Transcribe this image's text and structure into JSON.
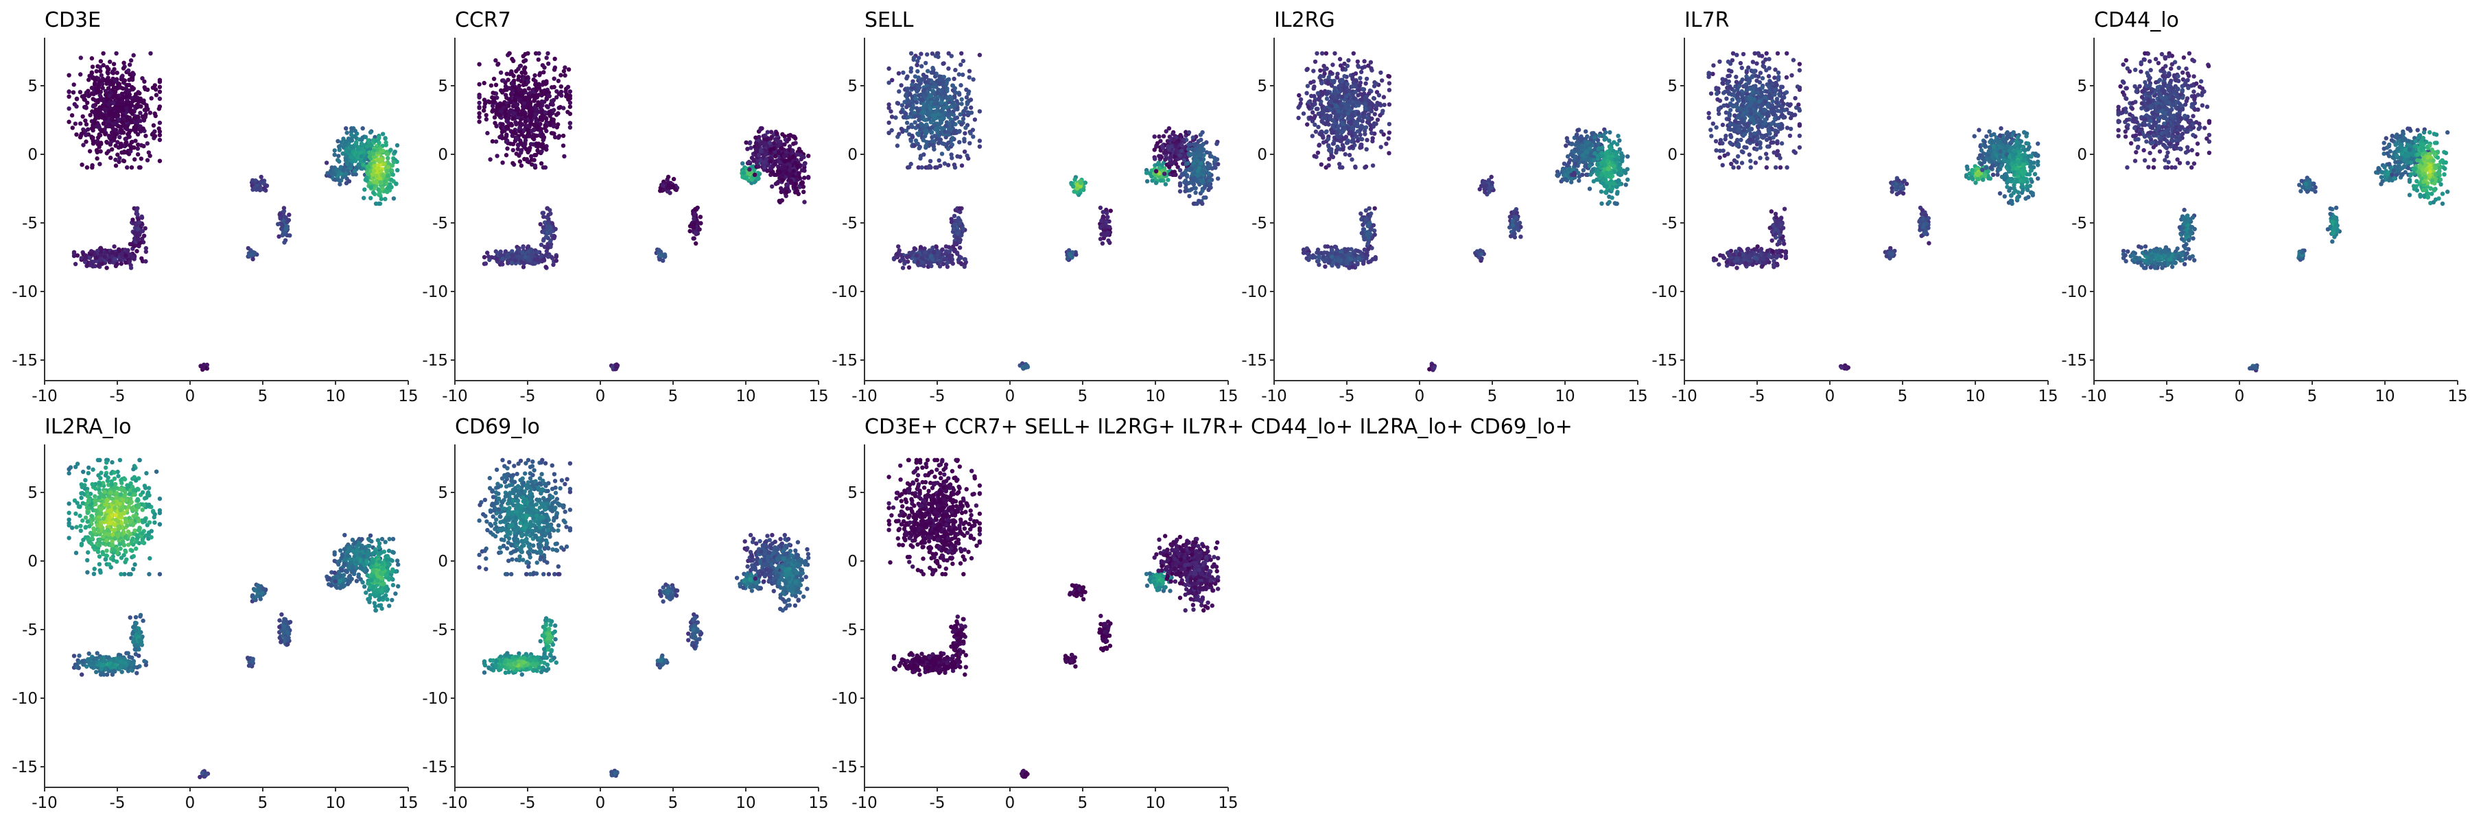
{
  "chart_data": [
    {
      "type": "scatter",
      "title": "CD3E",
      "x_ticks": [
        "-10",
        "-5",
        "0",
        "5",
        "10",
        "15"
      ],
      "y_ticks": [
        "5",
        "0",
        "-5",
        "-10",
        "-15"
      ],
      "xlim": [
        -10,
        15
      ],
      "ylim": [
        -16.5,
        8.5
      ],
      "color_scale": "viridis",
      "cluster_intensity": {
        "A": 0.0,
        "B1": 0.45,
        "B2": 0.6,
        "B3": 0.95,
        "C": 0.12,
        "D1": 0.25,
        "D2": 0.3,
        "D3": 0.3,
        "E": 0.05
      }
    },
    {
      "type": "scatter",
      "title": "CCR7",
      "x_ticks": [
        "-10",
        "-5",
        "0",
        "5",
        "10",
        "15"
      ],
      "y_ticks": [
        "5",
        "0",
        "-5",
        "-10",
        "-15"
      ],
      "xlim": [
        -10,
        15
      ],
      "ylim": [
        -16.5,
        8.5
      ],
      "color_scale": "viridis",
      "cluster_intensity": {
        "A": 0.0,
        "B1": 0.8,
        "B2": 0.1,
        "B3": 0.05,
        "C": 0.25,
        "D1": 0.05,
        "D2": 0.05,
        "D3": 0.35,
        "E": 0.15
      }
    },
    {
      "type": "scatter",
      "title": "SELL",
      "x_ticks": [
        "-10",
        "-5",
        "0",
        "5",
        "10",
        "15"
      ],
      "y_ticks": [
        "5",
        "0",
        "-5",
        "-10",
        "-15"
      ],
      "xlim": [
        -10,
        15
      ],
      "ylim": [
        -16.5,
        8.5
      ],
      "color_scale": "viridis",
      "cluster_intensity": {
        "A": 0.35,
        "B1": 0.85,
        "B2": 0.1,
        "B3": 0.4,
        "C": 0.25,
        "D1": 0.9,
        "D2": 0.1,
        "D3": 0.35,
        "E": 0.4
      }
    },
    {
      "type": "scatter",
      "title": "IL2RG",
      "x_ticks": [
        "-10",
        "-5",
        "0",
        "5",
        "10",
        "15"
      ],
      "y_ticks": [
        "5",
        "0",
        "-5",
        "-10",
        "-15"
      ],
      "xlim": [
        -10,
        15
      ],
      "ylim": [
        -16.5,
        8.5
      ],
      "color_scale": "viridis",
      "cluster_intensity": {
        "A": 0.25,
        "B1": 0.45,
        "B2": 0.4,
        "B3": 0.7,
        "C": 0.3,
        "D1": 0.25,
        "D2": 0.3,
        "D3": 0.3,
        "E": 0.1
      }
    },
    {
      "type": "scatter",
      "title": "IL7R",
      "x_ticks": [
        "-10",
        "-5",
        "0",
        "5",
        "10",
        "15"
      ],
      "y_ticks": [
        "5",
        "0",
        "-5",
        "-10",
        "-15"
      ],
      "xlim": [
        -10,
        15
      ],
      "ylim": [
        -16.5,
        8.5
      ],
      "color_scale": "viridis",
      "cluster_intensity": {
        "A": 0.3,
        "B1": 0.85,
        "B2": 0.45,
        "B3": 0.65,
        "C": 0.2,
        "D1": 0.3,
        "D2": 0.3,
        "D3": 0.3,
        "E": 0.1
      }
    },
    {
      "type": "scatter",
      "title": "CD44_lo",
      "x_ticks": [
        "-10",
        "-5",
        "0",
        "5",
        "10",
        "15"
      ],
      "y_ticks": [
        "5",
        "0",
        "-5",
        "-10",
        "-15"
      ],
      "xlim": [
        -10,
        15
      ],
      "ylim": [
        -16.5,
        8.5
      ],
      "color_scale": "viridis",
      "cluster_intensity": {
        "A": 0.25,
        "B1": 0.55,
        "B2": 0.5,
        "B3": 0.9,
        "C": 0.5,
        "D1": 0.45,
        "D2": 0.6,
        "D3": 0.45,
        "E": 0.4
      }
    },
    {
      "type": "scatter",
      "title": "IL2RA_lo",
      "x_ticks": [
        "-10",
        "-5",
        "0",
        "5",
        "10",
        "15"
      ],
      "y_ticks": [
        "5",
        "0",
        "-5",
        "-10",
        "-15"
      ],
      "xlim": [
        -10,
        15
      ],
      "ylim": [
        -16.5,
        8.5
      ],
      "color_scale": "viridis",
      "cluster_intensity": {
        "A": 0.9,
        "B1": 0.45,
        "B2": 0.5,
        "B3": 0.75,
        "C": 0.55,
        "D1": 0.45,
        "D2": 0.35,
        "D3": 0.35,
        "E": 0.3
      }
    },
    {
      "type": "scatter",
      "title": "CD69_lo",
      "x_ticks": [
        "-10",
        "-5",
        "0",
        "5",
        "10",
        "15"
      ],
      "y_ticks": [
        "5",
        "0",
        "-5",
        "-10",
        "-15"
      ],
      "xlim": [
        -10,
        15
      ],
      "ylim": [
        -16.5,
        8.5
      ],
      "color_scale": "viridis",
      "cluster_intensity": {
        "A": 0.5,
        "B1": 0.5,
        "B2": 0.3,
        "B3": 0.45,
        "C": 0.8,
        "D1": 0.4,
        "D2": 0.35,
        "D3": 0.4,
        "E": 0.35
      }
    },
    {
      "type": "scatter",
      "title": "CD3E+ CCR7+ SELL+ IL2RG+ IL7R+ CD44_lo+ IL2RA_lo+ CD69_lo+",
      "x_ticks": [
        "-10",
        "-5",
        "0",
        "5",
        "10",
        "15"
      ],
      "y_ticks": [
        "5",
        "0",
        "-5",
        "-10",
        "-15"
      ],
      "xlim": [
        -10,
        15
      ],
      "ylim": [
        -16.5,
        8.5
      ],
      "color_scale": "viridis",
      "cluster_intensity": {
        "A": 0.0,
        "B1": 0.7,
        "B2": 0.05,
        "B3": 0.1,
        "C": 0.0,
        "D1": 0.0,
        "D2": 0.0,
        "D3": 0.0,
        "E": 0.0
      }
    }
  ]
}
